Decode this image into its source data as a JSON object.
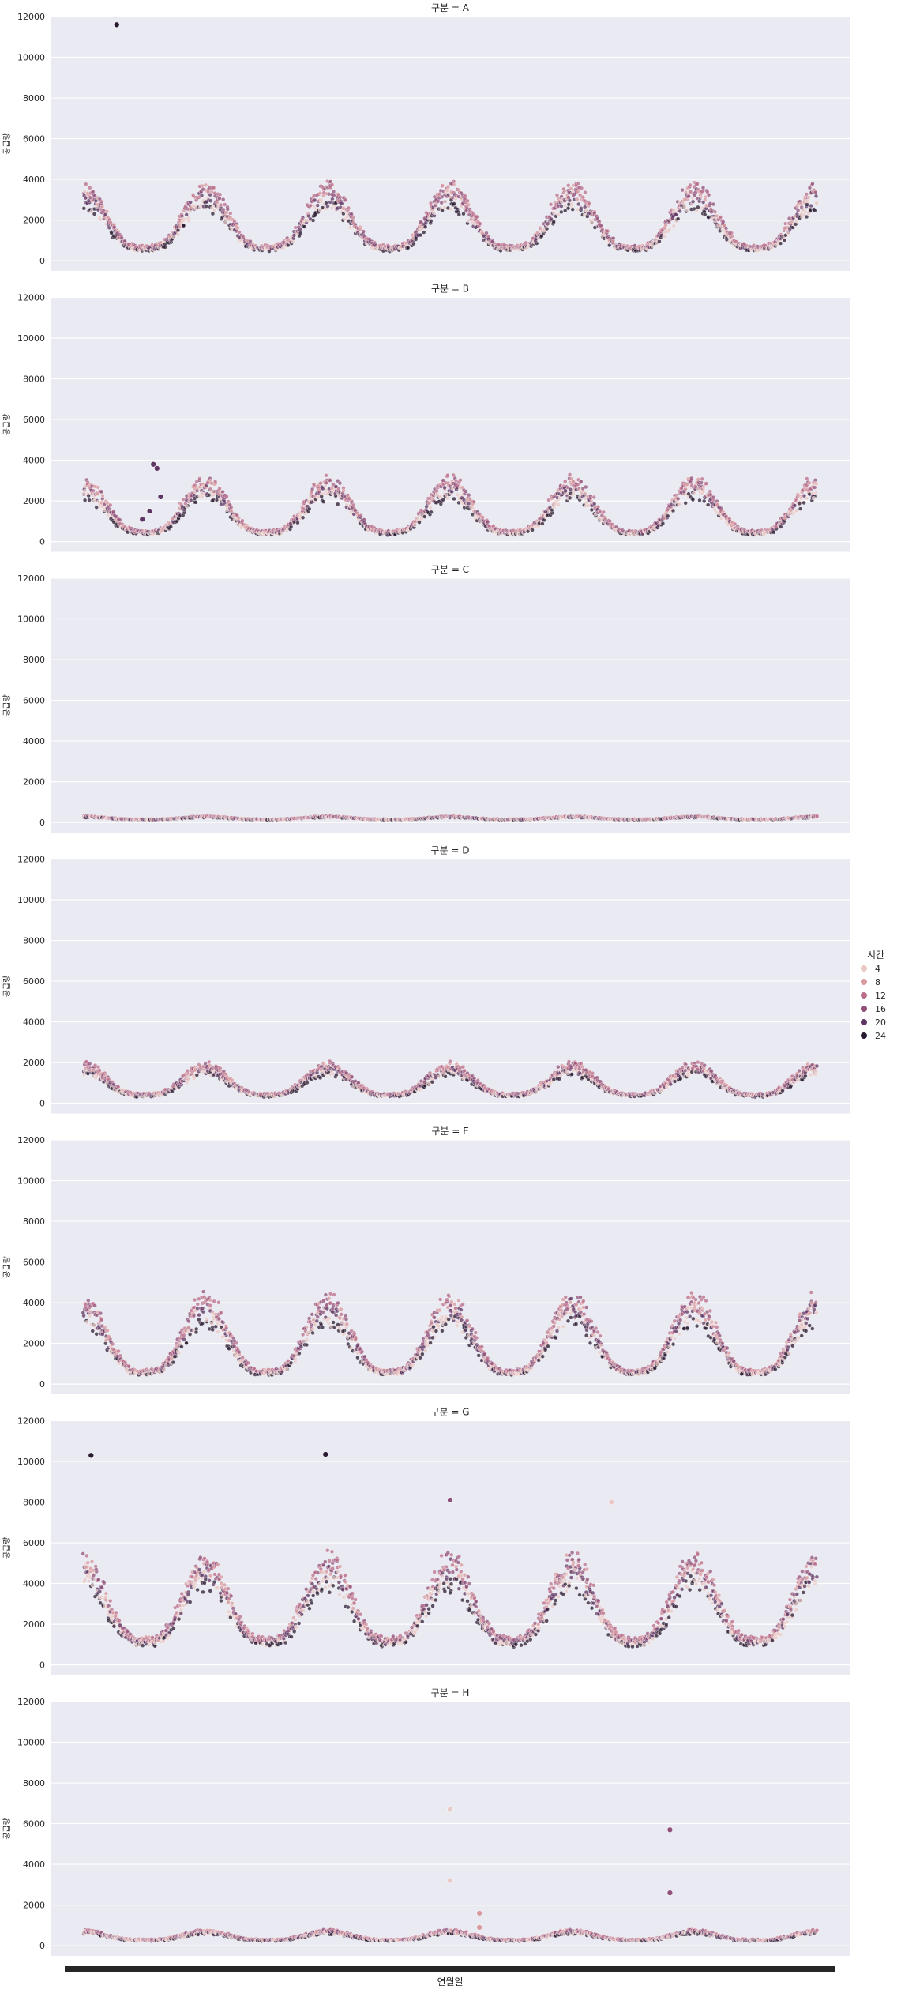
{
  "chart_data": {
    "type": "scatter",
    "facet_label_prefix": "구분 = ",
    "facets": [
      "A",
      "B",
      "C",
      "D",
      "E",
      "G",
      "H"
    ],
    "xlabel": "연월일",
    "ylabel": "공급량",
    "ylim": [
      -500,
      12000
    ],
    "yticks": [
      0,
      2000,
      4000,
      6000,
      8000,
      10000,
      12000
    ],
    "grid": true,
    "legend": {
      "title": "시간",
      "placement": "right",
      "entries": [
        "4",
        "8",
        "12",
        "16",
        "20",
        "24"
      ],
      "colors": [
        "#e8c9c7",
        "#d79a9f",
        "#b96d8a",
        "#90507a",
        "#5e3563",
        "#2a1a30"
      ]
    },
    "background_color": "#eaeaf2",
    "n_years": 6,
    "series_by_facet": {
      "A": {
        "winter_peak": 3600,
        "summer_base": 700,
        "spread": 0.55
      },
      "B": {
        "winter_peak": 3000,
        "summer_base": 500,
        "spread": 0.55
      },
      "C": {
        "winter_peak": 300,
        "summer_base": 160,
        "spread": 0.35
      },
      "D": {
        "winter_peak": 1900,
        "summer_base": 450,
        "spread": 0.5
      },
      "E": {
        "winter_peak": 4200,
        "summer_base": 650,
        "spread": 0.55
      },
      "G": {
        "winter_peak": 5200,
        "summer_base": 1300,
        "spread": 0.5
      },
      "H": {
        "winter_peak": 750,
        "summer_base": 300,
        "spread": 0.4
      }
    },
    "outliers": [
      {
        "facet": "A",
        "x_frac": 0.045,
        "y": 11600,
        "hour": 24
      },
      {
        "facet": "B",
        "x_frac": 0.095,
        "y": 3800,
        "hour": 20
      },
      {
        "facet": "B",
        "x_frac": 0.1,
        "y": 3600,
        "hour": 20
      },
      {
        "facet": "B",
        "x_frac": 0.105,
        "y": 2200,
        "hour": 20
      },
      {
        "facet": "B",
        "x_frac": 0.09,
        "y": 1500,
        "hour": 20
      },
      {
        "facet": "B",
        "x_frac": 0.08,
        "y": 1100,
        "hour": 20
      },
      {
        "facet": "G",
        "x_frac": 0.01,
        "y": 10300,
        "hour": 24
      },
      {
        "facet": "G",
        "x_frac": 0.33,
        "y": 10350,
        "hour": 24
      },
      {
        "facet": "G",
        "x_frac": 0.5,
        "y": 8100,
        "hour": 16
      },
      {
        "facet": "G",
        "x_frac": 0.72,
        "y": 8000,
        "hour": 4
      },
      {
        "facet": "H",
        "x_frac": 0.5,
        "y": 6700,
        "hour": 4
      },
      {
        "facet": "H",
        "x_frac": 0.5,
        "y": 3200,
        "hour": 4
      },
      {
        "facet": "H",
        "x_frac": 0.54,
        "y": 1600,
        "hour": 8
      },
      {
        "facet": "H",
        "x_frac": 0.54,
        "y": 900,
        "hour": 8
      },
      {
        "facet": "H",
        "x_frac": 0.8,
        "y": 5700,
        "hour": 16
      },
      {
        "facet": "H",
        "x_frac": 0.8,
        "y": 2600,
        "hour": 16
      }
    ]
  }
}
